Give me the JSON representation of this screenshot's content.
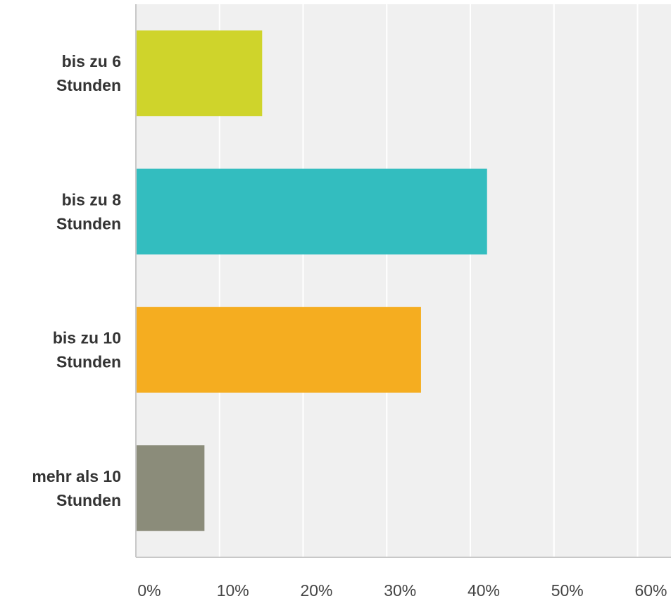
{
  "chart_data": {
    "type": "bar",
    "orientation": "horizontal",
    "categories": [
      [
        "bis zu 6",
        "Stunden"
      ],
      [
        "bis zu 8",
        "Stunden"
      ],
      [
        "bis zu 10",
        "Stunden"
      ],
      [
        "mehr als 10",
        "Stunden"
      ]
    ],
    "values": [
      15.1,
      42.0,
      34.1,
      8.2
    ],
    "colors": [
      "#cfd42b",
      "#33bdbf",
      "#f5ad20",
      "#8b8c7a"
    ],
    "xlim": [
      0,
      64
    ],
    "ticks": [
      0,
      10,
      20,
      30,
      40,
      50,
      60
    ],
    "tick_labels": [
      "0%",
      "10%",
      "20%",
      "30%",
      "40%",
      "50%",
      "60%"
    ],
    "grid": true,
    "background_color": "#f0f0f0",
    "title": "",
    "xlabel": "",
    "ylabel": ""
  }
}
